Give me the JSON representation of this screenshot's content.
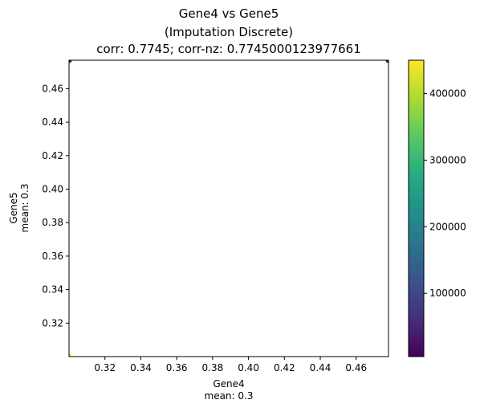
{
  "chart_data": {
    "type": "scatter",
    "title_lines": [
      "Gene4 vs Gene5",
      "(Imputation Discrete)",
      "corr: 0.7745; corr-nz: 0.7745000123977661"
    ],
    "xlabel_lines": [
      "Gene4",
      "mean: 0.3"
    ],
    "ylabel_lines": [
      "Gene5",
      "mean: 0.3"
    ],
    "xlim": [
      0.3,
      0.478
    ],
    "ylim": [
      0.3,
      0.477
    ],
    "xticks": [
      0.32,
      0.34,
      0.36,
      0.38,
      0.4,
      0.42,
      0.44,
      0.46
    ],
    "xtick_labels": [
      "0.32",
      "0.34",
      "0.36",
      "0.38",
      "0.40",
      "0.42",
      "0.44",
      "0.46"
    ],
    "yticks": [
      0.32,
      0.34,
      0.36,
      0.38,
      0.4,
      0.42,
      0.44,
      0.46
    ],
    "ytick_labels": [
      "0.32",
      "0.34",
      "0.36",
      "0.38",
      "0.40",
      "0.42",
      "0.44",
      "0.46"
    ],
    "points": [
      {
        "x": 0.3,
        "y": 0.3,
        "value": 450000
      },
      {
        "x": 0.3,
        "y": 0.477,
        "value": 5000
      },
      {
        "x": 0.478,
        "y": 0.477,
        "value": 5000
      }
    ],
    "colorbar": {
      "colormap": "viridis",
      "range": [
        5000,
        450000
      ],
      "ticks": [
        100000,
        200000,
        300000,
        400000
      ],
      "tick_labels": [
        "100000",
        "200000",
        "300000",
        "400000"
      ]
    },
    "grid": false,
    "legend": "none"
  }
}
